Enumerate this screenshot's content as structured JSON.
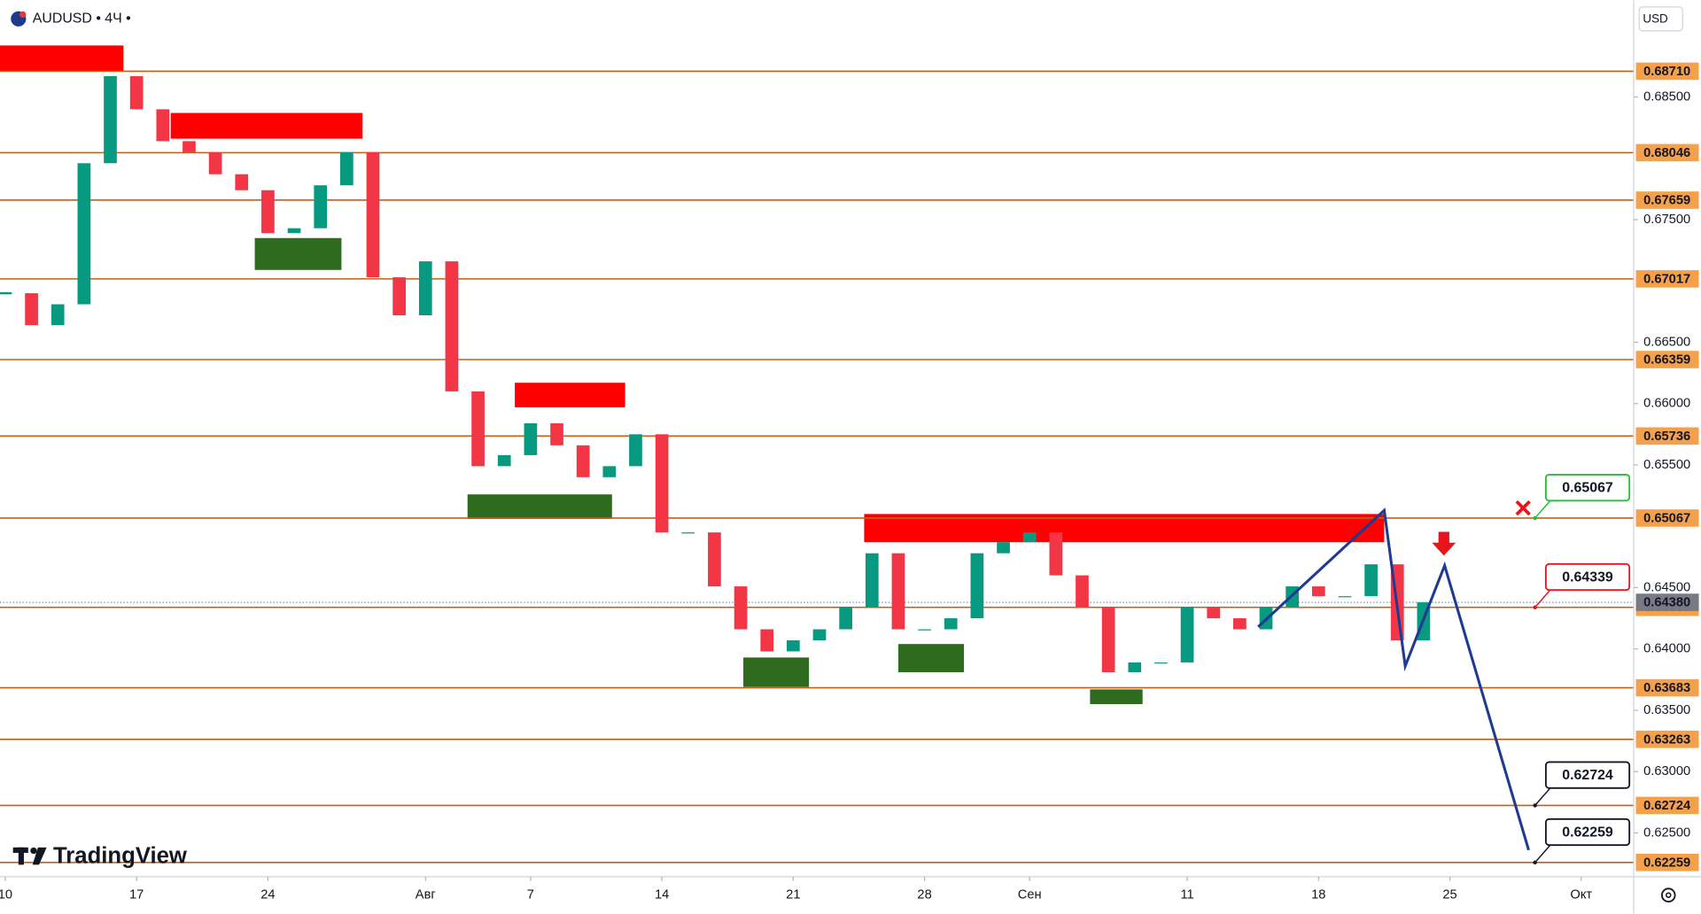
{
  "chart_data": {
    "type": "candlestick",
    "title": "AUDUSD • 4Ч •",
    "currency": "USD",
    "brand": "TradingView",
    "xlim": [
      -0.2,
      62
    ],
    "ylim": [
      0.62143,
      0.69022
    ],
    "xticks": [
      {
        "value": 0,
        "label": "10"
      },
      {
        "value": 5,
        "label": "17"
      },
      {
        "value": 10,
        "label": "24"
      },
      {
        "value": 16,
        "label": "Авг"
      },
      {
        "value": 20,
        "label": "7"
      },
      {
        "value": 25,
        "label": "14"
      },
      {
        "value": 30,
        "label": "21"
      },
      {
        "value": 35,
        "label": "28"
      },
      {
        "value": 39,
        "label": "Сен"
      },
      {
        "value": 45,
        "label": "11"
      },
      {
        "value": 50,
        "label": "18"
      },
      {
        "value": 55,
        "label": "25"
      },
      {
        "value": 60,
        "label": "Окт"
      }
    ],
    "yticks": [
      {
        "value": 0.685,
        "label": "0.68500"
      },
      {
        "value": 0.675,
        "label": "0.67500"
      },
      {
        "value": 0.665,
        "label": "0.66500"
      },
      {
        "value": 0.66,
        "label": "0.66000"
      },
      {
        "value": 0.655,
        "label": "0.65500"
      },
      {
        "value": 0.645,
        "label": "0.64500"
      },
      {
        "value": 0.64,
        "label": "0.64000"
      },
      {
        "value": 0.635,
        "label": "0.63500"
      },
      {
        "value": 0.63,
        "label": "0.63000"
      },
      {
        "value": 0.625,
        "label": "0.62500"
      }
    ],
    "series": [
      {
        "name": "AUDUSD",
        "up_color": "#089981",
        "down_color": "#f23645",
        "x": [
          0,
          1,
          2,
          3,
          4,
          5,
          6,
          7,
          8,
          9,
          10,
          11,
          12,
          13,
          14,
          15,
          16,
          17,
          18,
          19,
          20,
          21,
          22,
          23,
          24,
          25,
          26,
          27,
          28,
          29,
          30,
          31,
          32,
          33,
          34,
          35,
          36,
          37,
          38,
          39,
          40,
          41,
          42,
          43,
          44,
          45,
          46,
          47,
          48,
          49,
          50,
          51,
          52,
          53,
          54
        ],
        "values": [
          0.669,
          0.6664,
          0.6681,
          0.6796,
          0.6867,
          0.684,
          0.6814,
          0.6805,
          0.6787,
          0.6774,
          0.6739,
          0.6743,
          0.6778,
          0.6805,
          0.6703,
          0.6672,
          0.6716,
          0.661,
          0.6549,
          0.6558,
          0.6584,
          0.6566,
          0.654,
          0.6549,
          0.6575,
          0.6495,
          0.6495,
          0.6451,
          0.6416,
          0.6398,
          0.6407,
          0.6416,
          0.6434,
          0.6478,
          0.6416,
          0.6416,
          0.6425,
          0.6478,
          0.6487,
          0.6495,
          0.646,
          0.6434,
          0.6381,
          0.6389,
          0.6389,
          0.6434,
          0.6425,
          0.6416,
          0.6434,
          0.6451,
          0.6443,
          0.6443,
          0.6469,
          0.6407,
          0.6438
        ]
      }
    ],
    "levels": [
      {
        "value": 0.6871,
        "label": "0.68710"
      },
      {
        "value": 0.68046,
        "label": "0.68046"
      },
      {
        "value": 0.67659,
        "label": "0.67659"
      },
      {
        "value": 0.67017,
        "label": "0.67017"
      },
      {
        "value": 0.66359,
        "label": "0.66359"
      },
      {
        "value": 0.65736,
        "label": "0.65736"
      },
      {
        "value": 0.65067,
        "label": "0.65067"
      },
      {
        "value": 0.64339,
        "label": "0.64339"
      },
      {
        "value": 0.63683,
        "label": "0.63683"
      },
      {
        "value": 0.63263,
        "label": "0.63263"
      },
      {
        "value": 0.62724,
        "label": "0.62724"
      },
      {
        "value": 0.62259,
        "label": "0.62259"
      }
    ],
    "level_color": "#c0601c",
    "last_price": {
      "value": 0.6438,
      "label": "0.64380"
    },
    "zones": [
      {
        "x": [
          -0.2,
          4.5
        ],
        "y": [
          0.6871,
          0.6892
        ],
        "color": "#ff0000"
      },
      {
        "x": [
          6.3,
          13.6
        ],
        "y": [
          0.6816,
          0.6837
        ],
        "color": "#ff0000"
      },
      {
        "x": [
          9.5,
          12.8
        ],
        "y": [
          0.6709,
          0.6735
        ],
        "color": "#2e6b1f"
      },
      {
        "x": [
          19.4,
          23.6
        ],
        "y": [
          0.6597,
          0.6617
        ],
        "color": "#ff0000"
      },
      {
        "x": [
          17.6,
          23.1
        ],
        "y": [
          0.6506,
          0.6526
        ],
        "color": "#2e6b1f"
      },
      {
        "x": [
          28.1,
          30.6
        ],
        "y": [
          0.6369,
          0.6393
        ],
        "color": "#2e6b1f"
      },
      {
        "x": [
          32.7,
          52.5
        ],
        "y": [
          0.6487,
          0.651
        ],
        "color": "#ff0000"
      },
      {
        "x": [
          34,
          36.5
        ],
        "y": [
          0.6381,
          0.6404
        ],
        "color": "#2e6b1f"
      },
      {
        "x": [
          41.3,
          43.3
        ],
        "y": [
          0.6355,
          0.6367
        ],
        "color": "#2e6b1f"
      }
    ],
    "forecast": {
      "color": "#1f3a93",
      "x": [
        47.7,
        52.5,
        53.3,
        54.8,
        58.0
      ],
      "values": [
        0.6418,
        0.6513,
        0.6386,
        0.6468,
        0.6236
      ]
    },
    "callouts": [
      {
        "value": 0.65067,
        "label": "0.65067",
        "color": "#22c32e"
      },
      {
        "value": 0.64339,
        "label": "0.64339",
        "color": "#e8141c"
      },
      {
        "value": 0.62724,
        "label": "0.62724",
        "color": "#131722"
      },
      {
        "value": 0.62259,
        "label": "0.62259",
        "color": "#131722"
      }
    ]
  }
}
